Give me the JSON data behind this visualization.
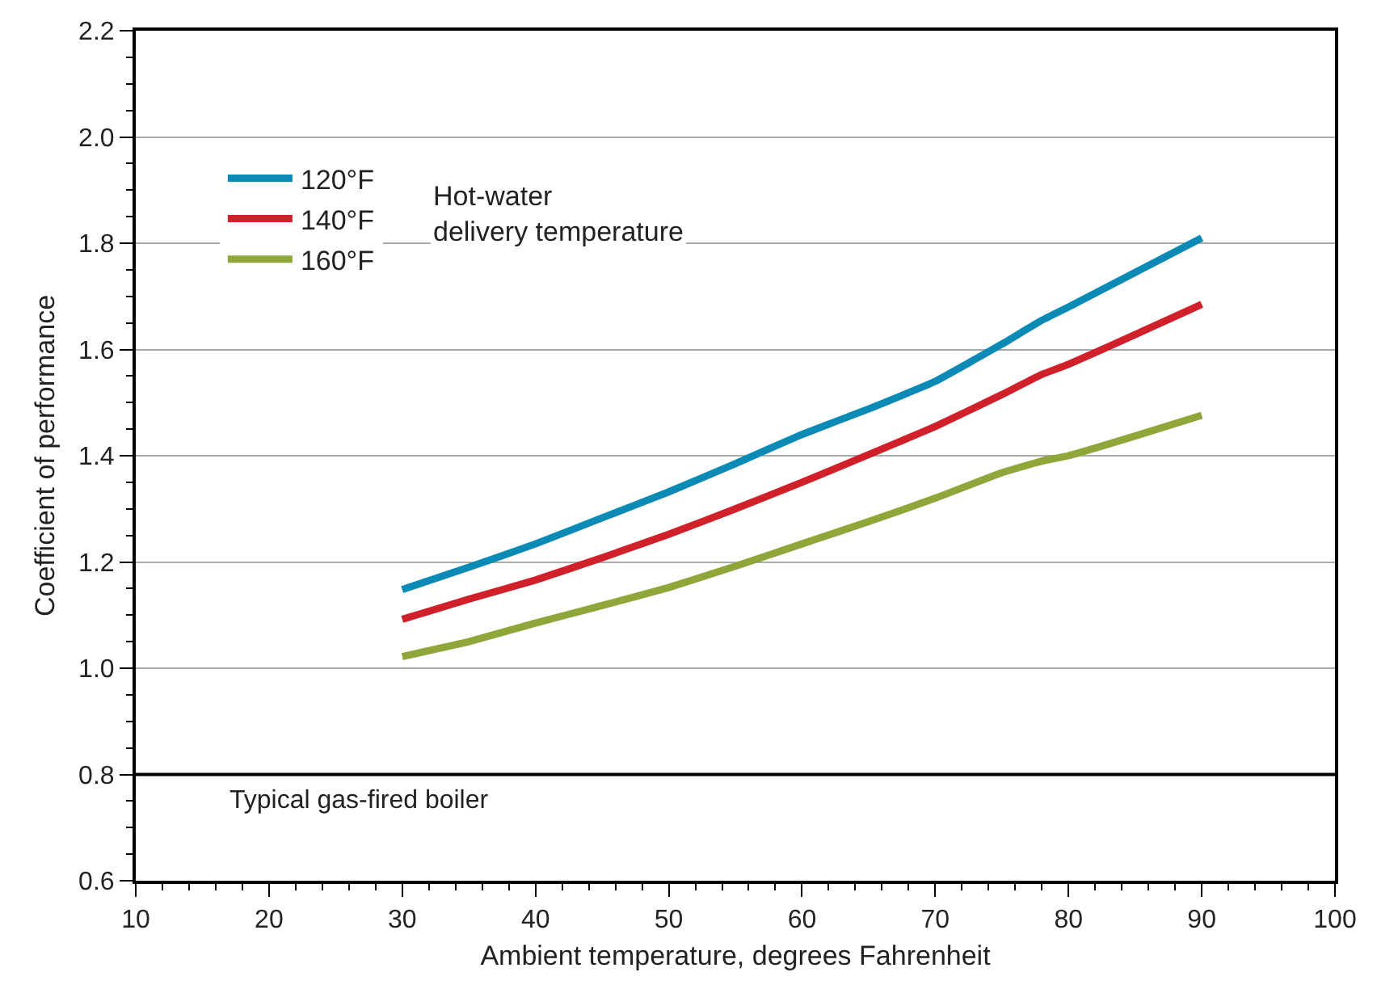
{
  "chart_data": {
    "type": "line",
    "xlabel": "Ambient temperature, degrees Fahrenheit",
    "ylabel": "Coefficient of performance",
    "legend_title": "Hot-water\ndelivery temperature",
    "x": [
      30,
      35,
      40,
      45,
      50,
      55,
      60,
      65,
      70,
      75,
      78,
      80,
      85,
      90
    ],
    "series": [
      {
        "name": "120°F",
        "color": "#0a8ab4",
        "values": [
          1.148,
          1.19,
          1.234,
          1.283,
          1.332,
          1.385,
          1.44,
          1.488,
          1.54,
          1.61,
          1.655,
          1.68,
          1.745,
          1.81
        ]
      },
      {
        "name": "140°F",
        "color": "#d0202a",
        "values": [
          1.092,
          1.13,
          1.166,
          1.208,
          1.252,
          1.3,
          1.35,
          1.402,
          1.455,
          1.515,
          1.553,
          1.572,
          1.628,
          1.685
        ]
      },
      {
        "name": "160°F",
        "color": "#8fa63a",
        "values": [
          1.022,
          1.05,
          1.085,
          1.118,
          1.152,
          1.192,
          1.234,
          1.276,
          1.32,
          1.368,
          1.39,
          1.4,
          1.437,
          1.476
        ]
      }
    ],
    "xlim": [
      10,
      100
    ],
    "xticks": [
      10,
      20,
      30,
      40,
      50,
      60,
      70,
      80,
      90,
      100
    ],
    "ylim": [
      0.6,
      2.2
    ],
    "yticks": [
      0.6,
      0.8,
      {
        "value": 1,
        "label": "1.0"
      },
      1.2,
      1.4,
      1.6,
      1.8,
      {
        "value": 2,
        "label": "2.0"
      },
      2.2
    ],
    "ref_lines": [
      {
        "axis": "y",
        "value": 0.8,
        "label": "Typical gas-fired boiler",
        "color": "#000000"
      }
    ],
    "grid": "y",
    "legend": "top left",
    "marker": "none",
    "line_style": "solid"
  }
}
